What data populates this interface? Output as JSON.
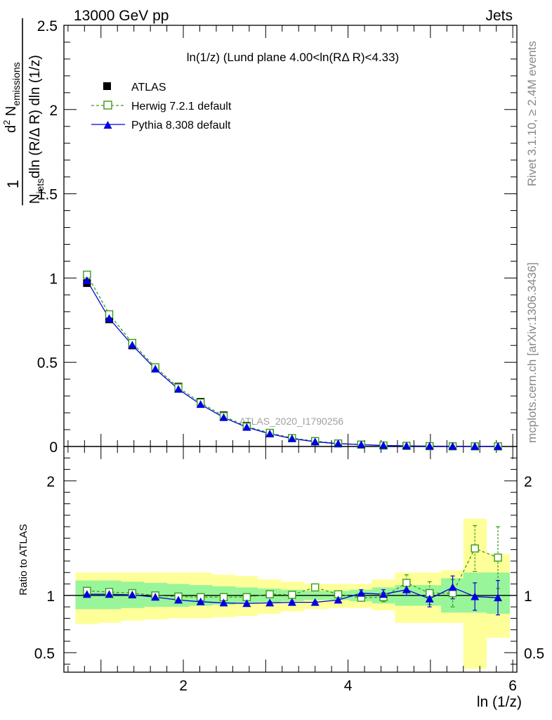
{
  "header": {
    "left": "13000 GeV pp",
    "right": "Jets"
  },
  "side": {
    "rivet": "Rivet 3.1.10, ≥ 2.4M events",
    "mcplots": "mcplots.cern.ch [arXiv:1306.3436]"
  },
  "watermark": "ATLAS_2020_I1790256",
  "colors": {
    "atlas": "#000000",
    "herwig": "#3a9a1a",
    "pythia": "#0000e0",
    "band_outer": "#ffff99",
    "band_inner": "#99f599"
  },
  "chart_data": [
    {
      "type": "line",
      "title": "ln(1/z) (Lund plane 4.00<ln(RΔ R)<4.33)",
      "ylabel": "1/N_jets d² N_emissions / dln (R/Δ R) dln (1/z)",
      "xlabel": "ln (1/z)",
      "xlim": [
        0.55,
        6.05
      ],
      "ylim": [
        0,
        2.5
      ],
      "y_ticks": [
        "0",
        "0.5",
        "1",
        "1.5",
        "2",
        "2.5"
      ],
      "x": [
        0.83,
        1.1,
        1.38,
        1.66,
        1.94,
        2.21,
        2.49,
        2.77,
        3.05,
        3.32,
        3.6,
        3.88,
        4.16,
        4.43,
        4.71,
        4.99,
        5.27,
        5.54,
        5.82
      ],
      "legend": [
        "ATLAS",
        "Herwig 7.2.1 default",
        "Pythia 8.308 default"
      ],
      "series": [
        {
          "name": "ATLAS",
          "values": [
            0.97,
            0.755,
            0.6,
            0.467,
            0.355,
            0.265,
            0.185,
            0.122,
            0.08,
            0.05,
            0.03,
            0.018,
            0.011,
            0.006,
            0.0035,
            0.002,
            0.001,
            0.0006,
            0.0003
          ]
        },
        {
          "name": "Herwig 7.2.1 default",
          "values": [
            1.02,
            0.785,
            0.615,
            0.47,
            0.35,
            0.26,
            0.18,
            0.118,
            0.081,
            0.05,
            0.032,
            0.018,
            0.011,
            0.006,
            0.004,
            0.002,
            0.001,
            0.0008,
            0.0004
          ]
        },
        {
          "name": "Pythia 8.308 default",
          "values": [
            0.985,
            0.76,
            0.602,
            0.46,
            0.34,
            0.25,
            0.172,
            0.114,
            0.075,
            0.047,
            0.028,
            0.017,
            0.011,
            0.006,
            0.0037,
            0.002,
            0.0011,
            0.0006,
            0.0003
          ]
        }
      ]
    },
    {
      "type": "line",
      "ylabel": "Ratio to ATLAS",
      "xlabel": "ln (1/z)",
      "xlim": [
        0.55,
        6.05
      ],
      "ylim": [
        0.33,
        2.3
      ],
      "y_ticks": [
        "0.5",
        "1",
        "2"
      ],
      "x_ticks": [
        "2",
        "4",
        "6"
      ],
      "x": [
        0.83,
        1.1,
        1.38,
        1.66,
        1.94,
        2.21,
        2.49,
        2.77,
        3.05,
        3.32,
        3.6,
        3.88,
        4.16,
        4.43,
        4.71,
        4.99,
        5.27,
        5.54,
        5.82
      ],
      "bin_edges": [
        0.69,
        0.97,
        1.24,
        1.52,
        1.8,
        2.07,
        2.35,
        2.63,
        2.9,
        3.18,
        3.46,
        3.74,
        4.02,
        4.29,
        4.57,
        4.85,
        5.13,
        5.4,
        5.68,
        5.96
      ],
      "band_outer": [
        [
          0.75,
          1.2
        ],
        [
          0.76,
          1.2
        ],
        [
          0.78,
          1.2
        ],
        [
          0.79,
          1.2
        ],
        [
          0.8,
          1.2
        ],
        [
          0.8,
          1.2
        ],
        [
          0.81,
          1.18
        ],
        [
          0.82,
          1.17
        ],
        [
          0.84,
          1.14
        ],
        [
          0.86,
          1.12
        ],
        [
          0.88,
          1.1
        ],
        [
          0.89,
          1.1
        ],
        [
          0.89,
          1.1
        ],
        [
          0.87,
          1.14
        ],
        [
          0.76,
          1.2
        ],
        [
          0.76,
          1.2
        ],
        [
          0.76,
          1.22
        ],
        [
          0.36,
          1.67
        ],
        [
          0.63,
          1.36
        ]
      ],
      "band_inner": [
        [
          0.88,
          1.13
        ],
        [
          0.88,
          1.13
        ],
        [
          0.89,
          1.12
        ],
        [
          0.9,
          1.11
        ],
        [
          0.9,
          1.1
        ],
        [
          0.91,
          1.09
        ],
        [
          0.92,
          1.08
        ],
        [
          0.93,
          1.07
        ],
        [
          0.94,
          1.06
        ],
        [
          0.95,
          1.05
        ],
        [
          0.96,
          1.04
        ],
        [
          0.96,
          1.04
        ],
        [
          0.95,
          1.05
        ],
        [
          0.93,
          1.07
        ],
        [
          0.91,
          1.09
        ],
        [
          0.91,
          1.09
        ],
        [
          0.85,
          1.15
        ],
        [
          0.85,
          1.2
        ],
        [
          0.84,
          1.2
        ]
      ],
      "series": [
        {
          "name": "Herwig 7.2.1 default",
          "values": [
            1.04,
            1.03,
            1.02,
            1.0,
            0.99,
            0.985,
            0.985,
            0.985,
            1.01,
            1.005,
            1.07,
            1.01,
            0.98,
            0.985,
            1.11,
            1.02,
            1.02,
            1.41,
            1.33
          ],
          "err": [
            0,
            0,
            0,
            0,
            0,
            0,
            0,
            0,
            0,
            0,
            0,
            0.02,
            0.03,
            0.04,
            0.07,
            0.1,
            0.12,
            0.2,
            0.27
          ]
        },
        {
          "name": "Pythia 8.308 default",
          "values": [
            1.01,
            1.01,
            1.005,
            0.985,
            0.96,
            0.945,
            0.935,
            0.93,
            0.935,
            0.94,
            0.94,
            0.96,
            1.02,
            1.01,
            1.05,
            0.97,
            1.07,
            0.99,
            0.98
          ],
          "err": [
            0,
            0,
            0,
            0,
            0,
            0,
            0,
            0,
            0.01,
            0.01,
            0.01,
            0.02,
            0.03,
            0.04,
            0.05,
            0.07,
            0.1,
            0.12,
            0.15
          ]
        }
      ]
    }
  ]
}
